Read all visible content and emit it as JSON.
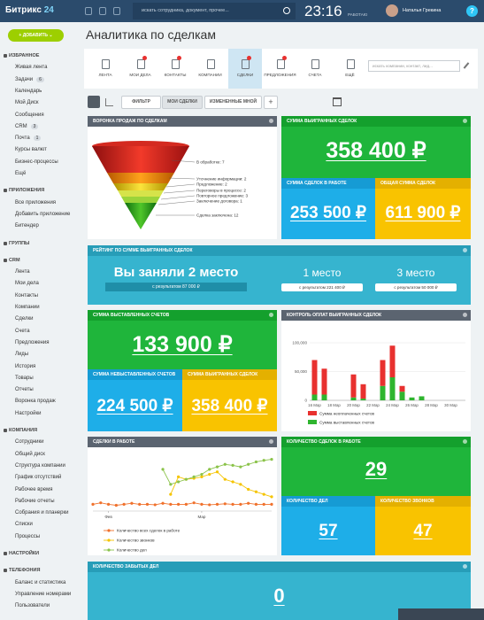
{
  "topbar": {
    "logo": "Битрикс",
    "logo_num": "24",
    "search": "искать сотрудника, документ, прочее...",
    "time": "23:16",
    "status": "РАБОТАЮ",
    "user": "Наталья Грекина",
    "help": "?"
  },
  "sidebar": {
    "add": "ДОБАВИТЬ",
    "sections": [
      {
        "title": "ИЗБРАННОЕ",
        "items": [
          {
            "label": "Живая лента"
          },
          {
            "label": "Задачи",
            "count": "6"
          },
          {
            "label": "Календарь"
          },
          {
            "label": "Мой Диск"
          },
          {
            "label": "Сообщения"
          },
          {
            "label": "CRM",
            "count": "3"
          },
          {
            "label": "Почта",
            "count": "1"
          },
          {
            "label": "Курсы валют"
          },
          {
            "label": "Бизнес-процессы"
          },
          {
            "label": "Ещё"
          }
        ]
      },
      {
        "title": "ПРИЛОЖЕНИЯ",
        "items": [
          {
            "label": "Все приложения"
          },
          {
            "label": "Добавить приложение"
          },
          {
            "label": "Битендер"
          }
        ]
      },
      {
        "title": "ГРУППЫ",
        "items": []
      },
      {
        "title": "CRM",
        "items": [
          {
            "label": "Лента"
          },
          {
            "label": "Мои дела"
          },
          {
            "label": "Контакты"
          },
          {
            "label": "Компании"
          },
          {
            "label": "Сделки"
          },
          {
            "label": "Счета"
          },
          {
            "label": "Предложения"
          },
          {
            "label": "Лиды"
          },
          {
            "label": "История"
          },
          {
            "label": "Товары"
          },
          {
            "label": "Отчеты"
          },
          {
            "label": "Воронка продаж"
          },
          {
            "label": "Настройки"
          }
        ]
      },
      {
        "title": "КОМПАНИЯ",
        "items": [
          {
            "label": "Сотрудники"
          },
          {
            "label": "Общий диск"
          },
          {
            "label": "Структура компании"
          },
          {
            "label": "График отсутствий"
          },
          {
            "label": "Рабочее время"
          },
          {
            "label": "Рабочие отчеты"
          },
          {
            "label": "Собрания и планерки"
          },
          {
            "label": "Списки"
          },
          {
            "label": "Процессы"
          }
        ]
      },
      {
        "title": "НАСТРОЙКИ",
        "items": []
      },
      {
        "title": "ТЕЛЕФОНИЯ",
        "items": [
          {
            "label": "Баланс и статистика"
          },
          {
            "label": "Управление номерами"
          },
          {
            "label": "Пользователи"
          }
        ]
      }
    ]
  },
  "page_title": "Аналитика по сделкам",
  "tabs": [
    "ЛЕНТА",
    "МОИ ДЕЛА",
    "КОНТАКТЫ",
    "КОМПАНИИ",
    "СДЕЛКИ",
    "ПРЕДЛОЖЕНИЯ",
    "СЧЕТА",
    "ЕЩЁ"
  ],
  "tab_search": "искать компании, контакт, лид...",
  "filters": [
    "ФИЛЬТР",
    "МОИ СДЕЛКИ",
    "ИЗМЕНЕННЫЕ МНОЙ",
    "+"
  ],
  "funnel": {
    "title": "ВОРОНКА ПРОДАЖ ПО СДЕЛКАМ",
    "stages": [
      "В обработке: 7",
      "Уточнение информации: 2",
      "Предложение: 2",
      "Переговоры в процессе: 2",
      "Повторное предложение: 3",
      "Заключение договора: 1",
      "Сделка заключена: 12"
    ]
  },
  "won": {
    "title": "СУММА ВЫИГРАННЫХ СДЕЛОК",
    "value": "358 400 ₽"
  },
  "in_work": {
    "title": "СУММА СДЕЛОК В РАБОТЕ",
    "value": "253 500 ₽"
  },
  "total": {
    "title": "ОБЩАЯ СУММА СДЕЛОК",
    "value": "611 900 ₽"
  },
  "rating": {
    "title": "РЕЙТИНГ ПО СУММЕ ВЫИГРАННЫХ СДЕЛОК",
    "place": "Вы заняли 2 место",
    "result": "с результатом 87 000 ₽",
    "first": "1 место",
    "first_result": "с результатом 221 400 ₽",
    "third": "3 место",
    "third_result": "с результатом 50 000 ₽"
  },
  "invoiced": {
    "title": "СУММА ВЫСТАВЛЕННЫХ СЧЕТОВ",
    "value": "133 900 ₽"
  },
  "not_invoiced": {
    "title": "СУММА НЕВЫСТАВЛЕННЫХ СЧЕТОВ",
    "value": "224 500 ₽"
  },
  "won2": {
    "title": "СУММА ВЫИГРАННЫХ СДЕЛОК",
    "value": "358 400 ₽"
  },
  "charts": {
    "payments": {
      "type": "bar",
      "stacked": true,
      "title": "КОНТРОЛЬ ОПЛАТ ВЫИГРАННЫХ СДЕЛОК",
      "categories": [
        "16 Мар",
        null,
        "18 Мар",
        null,
        "20 Мар",
        null,
        "22 Мар",
        null,
        "24 Мар",
        null,
        "26 Мар",
        null,
        "28 Мар",
        null,
        "30 Мар",
        null
      ],
      "series": [
        {
          "name": "Сумма выставленных счетов",
          "color": "#2fb52f",
          "values": [
            10000,
            10000,
            0,
            0,
            5000,
            3000,
            0,
            25000,
            40000,
            15000,
            5000,
            7000,
            0,
            0,
            0,
            0
          ]
        },
        {
          "name": "Сумма неоплаченных счетов",
          "color": "#e8312f",
          "values": [
            60000,
            45000,
            0,
            0,
            40000,
            25000,
            0,
            45000,
            55000,
            10000,
            0,
            0,
            0,
            0,
            0,
            0
          ]
        }
      ],
      "ylim": [
        0,
        120000
      ],
      "yticks": [
        0,
        {
          "value": 50000,
          "label": "50,000"
        },
        {
          "value": 100000,
          "label": "100,000"
        }
      ],
      "grid": true
    },
    "deals": {
      "type": "line",
      "title": "СДЕЛКИ В РАБОТЕ",
      "categories": [
        null,
        null,
        "Фев",
        null,
        null,
        null,
        null,
        null,
        null,
        null,
        null,
        null,
        null,
        null,
        "Мар",
        null,
        null,
        null,
        null,
        null,
        null,
        null,
        null,
        null
      ],
      "series": [
        {
          "name": "Количество всех сделок в работе",
          "color": "#f0712c",
          "values": [
            1,
            1.3,
            1,
            0.8,
            1,
            1.2,
            1,
            1,
            0.9,
            1.2,
            1,
            1,
            1,
            1.3,
            1,
            0.9,
            1,
            1.1,
            1,
            1,
            1.2,
            1,
            1,
            1
          ]
        },
        {
          "name": "Количество звонков",
          "color": "#f5c400",
          "values": [
            null,
            null,
            null,
            null,
            null,
            null,
            null,
            null,
            null,
            null,
            3,
            6.5,
            6,
            6.2,
            6.5,
            7,
            7.5,
            6,
            5.5,
            5,
            4,
            3.5,
            3,
            2.5
          ]
        },
        {
          "name": "Количество дел",
          "color": "#8bc34a",
          "values": [
            null,
            null,
            null,
            null,
            null,
            null,
            null,
            null,
            null,
            8,
            5,
            5.5,
            6,
            6.5,
            7,
            8,
            8.5,
            9,
            8.8,
            8.5,
            9,
            9.5,
            9.8,
            10
          ]
        }
      ],
      "ylim": [
        0,
        11
      ]
    }
  },
  "deal_count": {
    "title": "КОЛИЧЕСТВО СДЕЛОК В РАБОТЕ",
    "value": "29"
  },
  "task_count": {
    "title": "КОЛИЧЕСТВО ДЕЛ",
    "value": "57"
  },
  "call_count": {
    "title": "КОЛИЧЕСТВО ЗВОНКОВ",
    "value": "47"
  },
  "forgotten": {
    "title": "КОЛИЧЕСТВО ЗАБЫТЫХ ДЕЛ",
    "value": "0"
  }
}
